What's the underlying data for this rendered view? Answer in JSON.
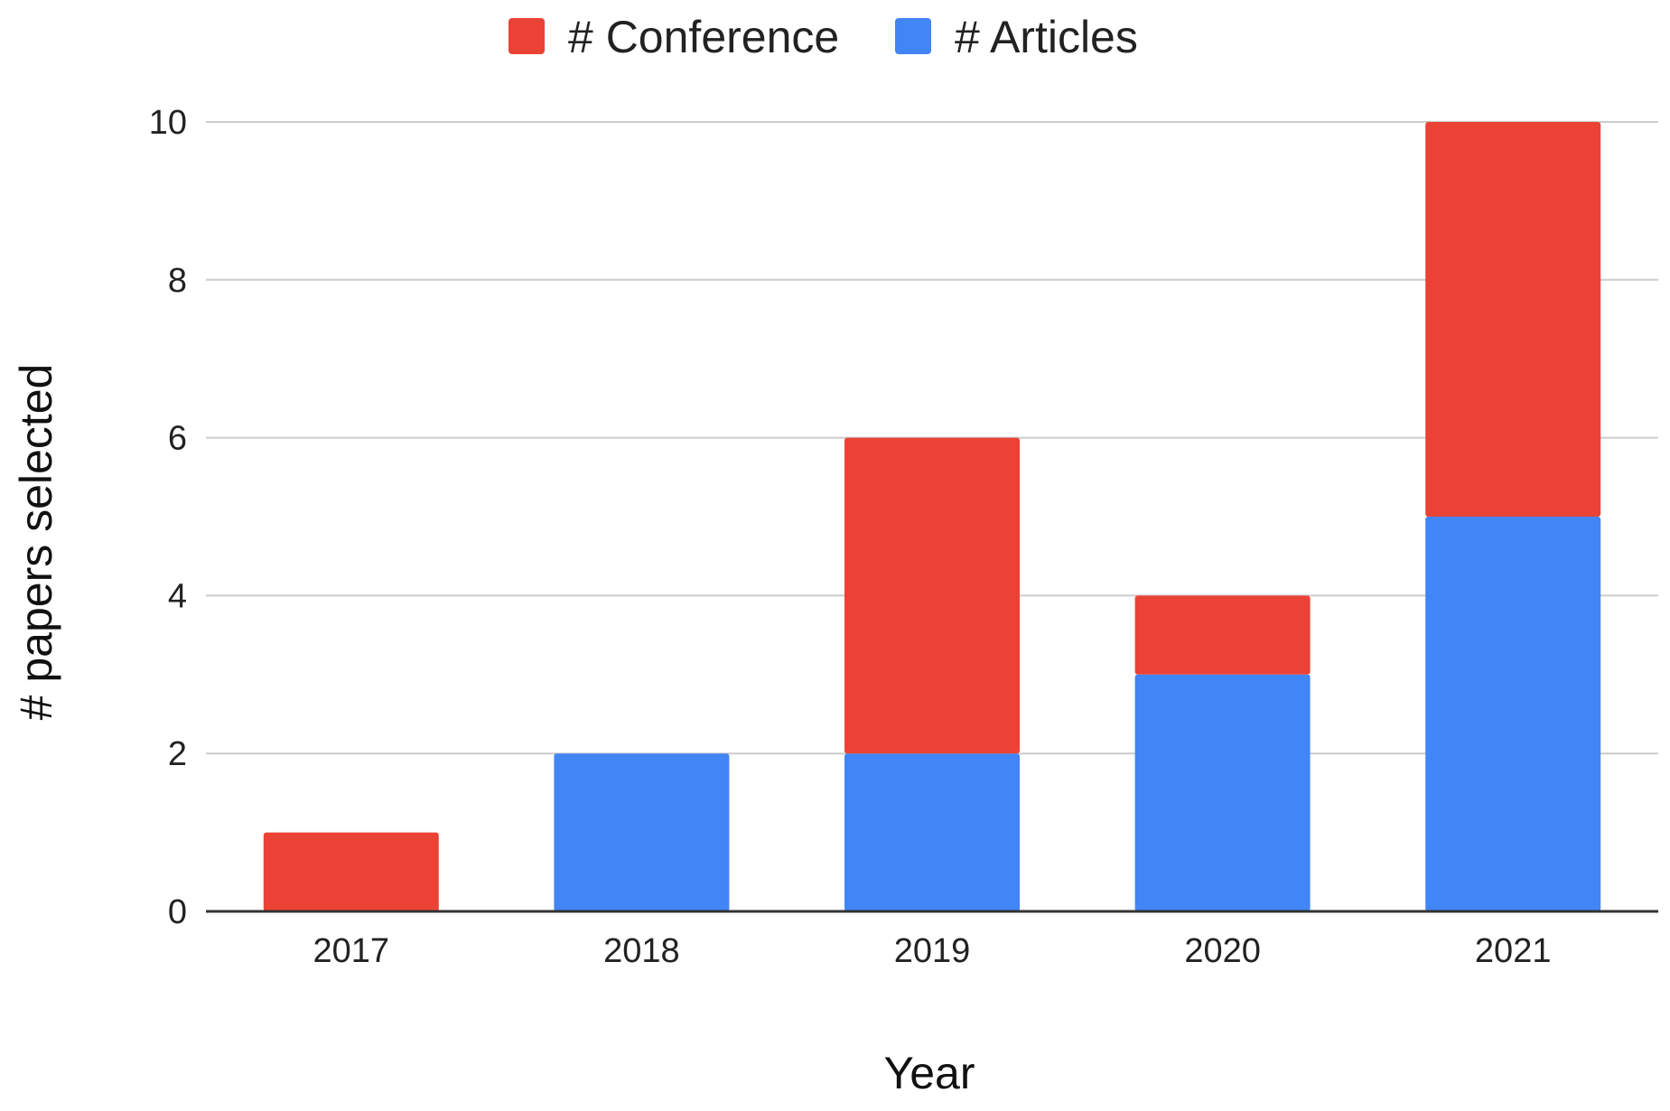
{
  "chart_data": {
    "type": "bar",
    "stacked": true,
    "categories": [
      "2017",
      "2018",
      "2019",
      "2020",
      "2021"
    ],
    "series": [
      {
        "name": "# Articles",
        "color": "#4285F4",
        "values": [
          0,
          2,
          2,
          3,
          5
        ]
      },
      {
        "name": "# Conference",
        "color": "#EA4335",
        "values": [
          1,
          0,
          4,
          1,
          5
        ]
      }
    ],
    "legend_order": [
      "# Conference",
      "# Articles"
    ],
    "legend_position": "top-center",
    "xlabel": "Year",
    "ylabel": "# papers selected",
    "ylim": [
      0,
      10
    ],
    "yticks": [
      0,
      2,
      4,
      6,
      8,
      10
    ],
    "grid": true
  }
}
